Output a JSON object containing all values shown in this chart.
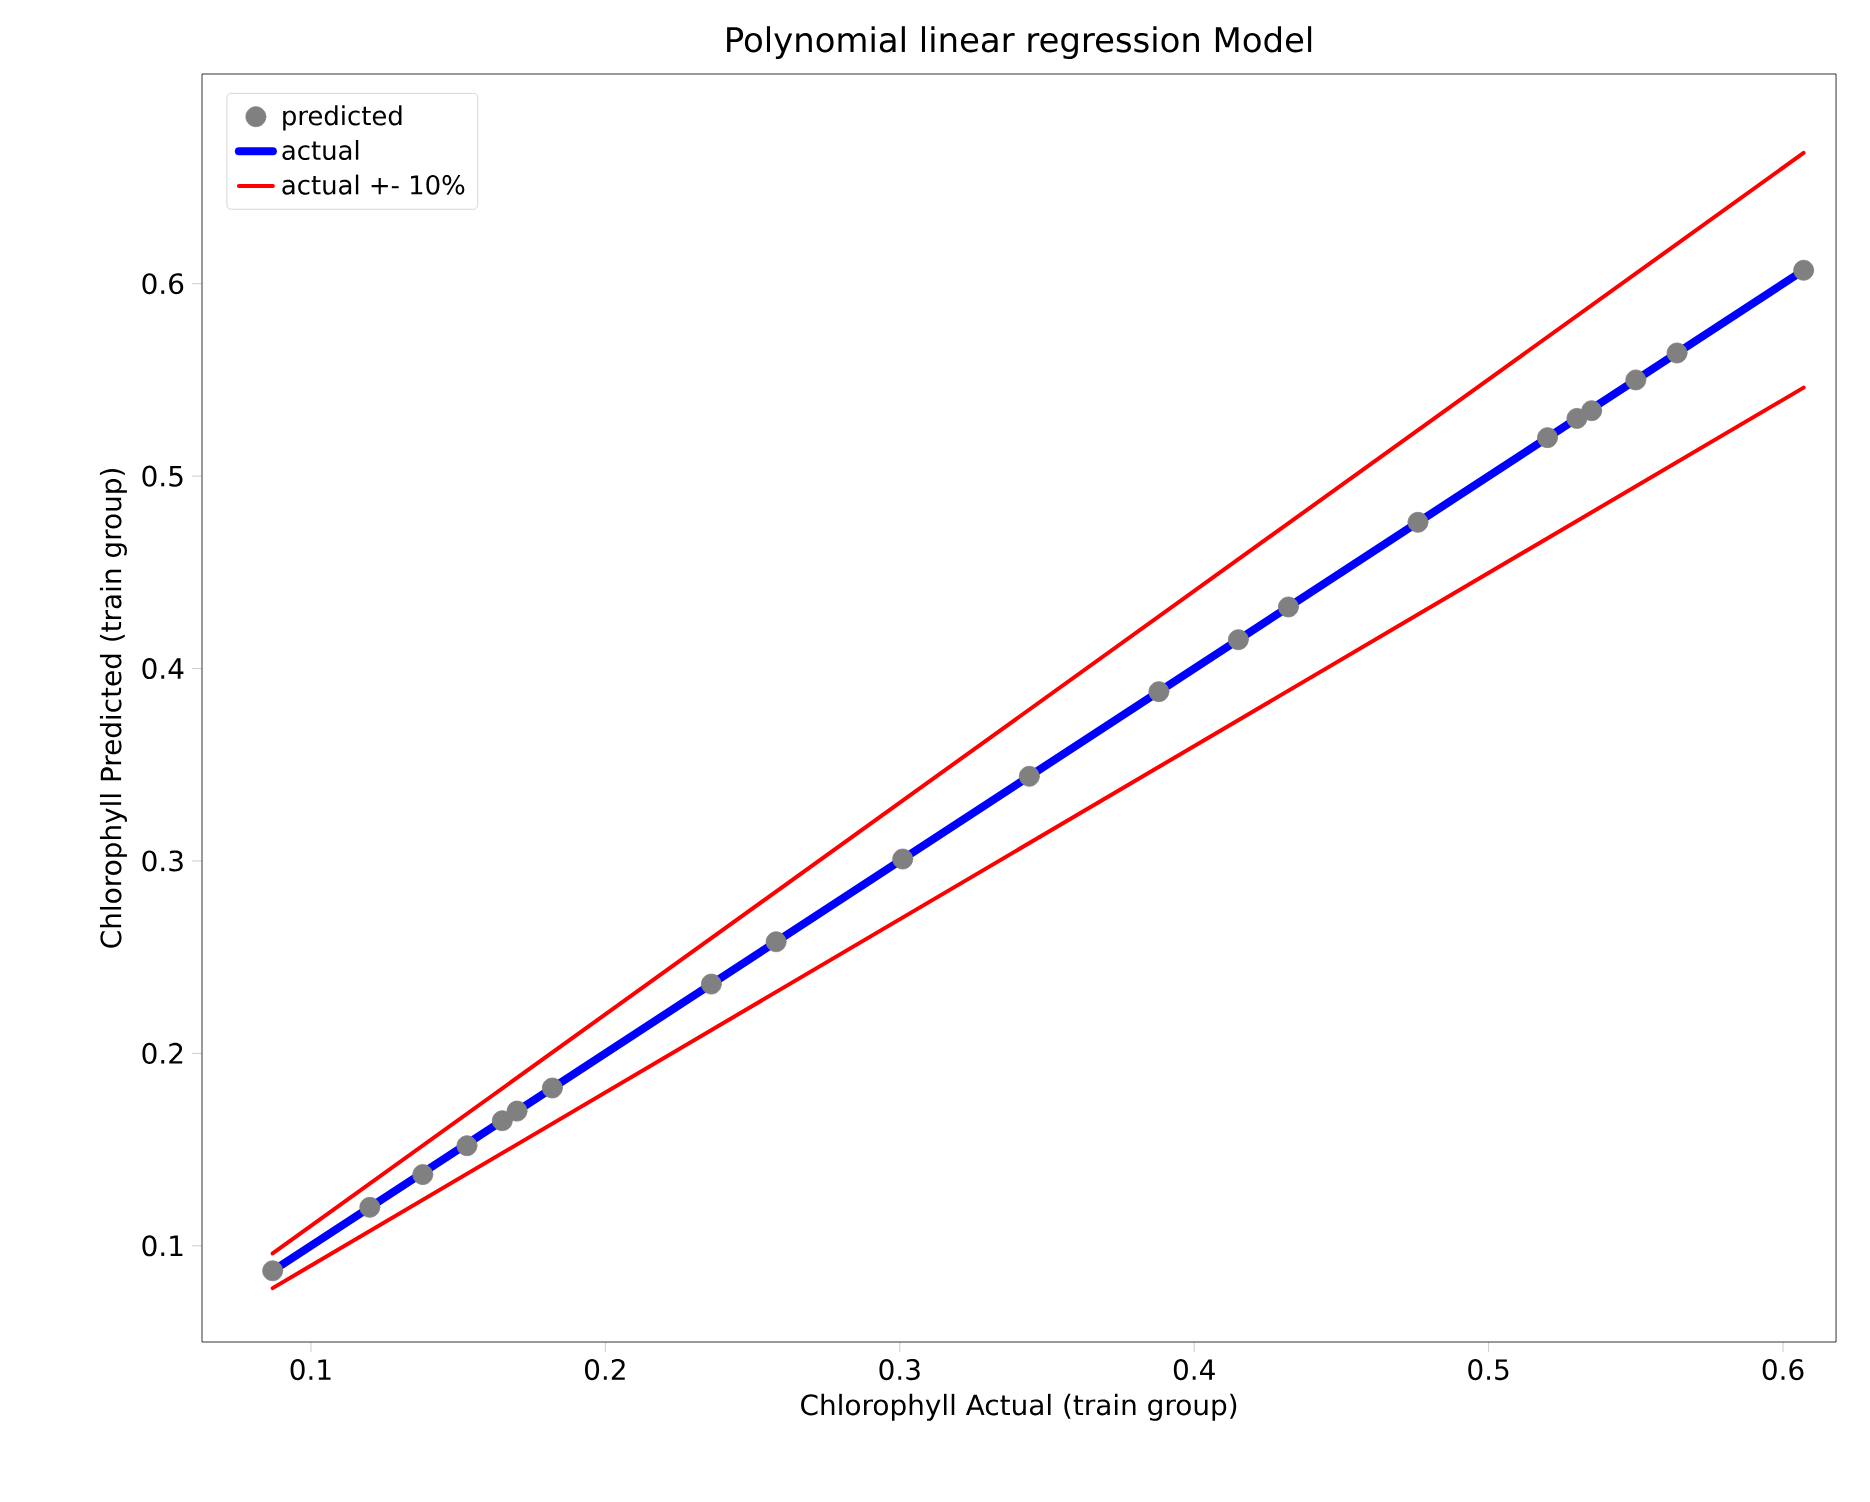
{
  "chart_data": {
    "type": "scatter",
    "title": "Polynomial linear regression Model",
    "xlabel": "Chlorophyll Actual (train group)",
    "ylabel": "Chlorophyll Predicted (train group)",
    "xlim": [
      0.063,
      0.618
    ],
    "ylim": [
      0.05,
      0.709
    ],
    "xticks": [
      0.1,
      0.2,
      0.3,
      0.4,
      0.5,
      0.6
    ],
    "yticks": [
      0.1,
      0.2,
      0.3,
      0.4,
      0.5,
      0.6
    ],
    "grid": false,
    "legend": "top left",
    "series": [
      {
        "name": "predicted",
        "marker": "circle",
        "color": "#808080",
        "x": [
          0.087,
          0.12,
          0.138,
          0.153,
          0.165,
          0.17,
          0.182,
          0.236,
          0.258,
          0.301,
          0.344,
          0.388,
          0.415,
          0.432,
          0.476,
          0.52,
          0.53,
          0.535,
          0.55,
          0.564,
          0.607
        ],
        "values": [
          0.087,
          0.12,
          0.137,
          0.152,
          0.165,
          0.17,
          0.182,
          0.236,
          0.258,
          0.301,
          0.344,
          0.388,
          0.415,
          0.432,
          0.476,
          0.52,
          0.53,
          0.534,
          0.55,
          0.564,
          0.607
        ]
      },
      {
        "name": "actual",
        "type": "line",
        "marker": "none",
        "color": "#0000ff",
        "x": [
          0.087,
          0.607
        ],
        "values": [
          0.087,
          0.607
        ]
      },
      {
        "name": "actual +- 10%",
        "type": "line",
        "marker": "none",
        "color": "#ff0000",
        "x": [
          0.087,
          0.607
        ],
        "values": [
          0.096,
          0.668
        ]
      },
      {
        "type": "line",
        "marker": "none",
        "color": "#ff0000",
        "x": [
          0.087,
          0.607
        ],
        "values": [
          0.078,
          0.546
        ]
      }
    ]
  }
}
